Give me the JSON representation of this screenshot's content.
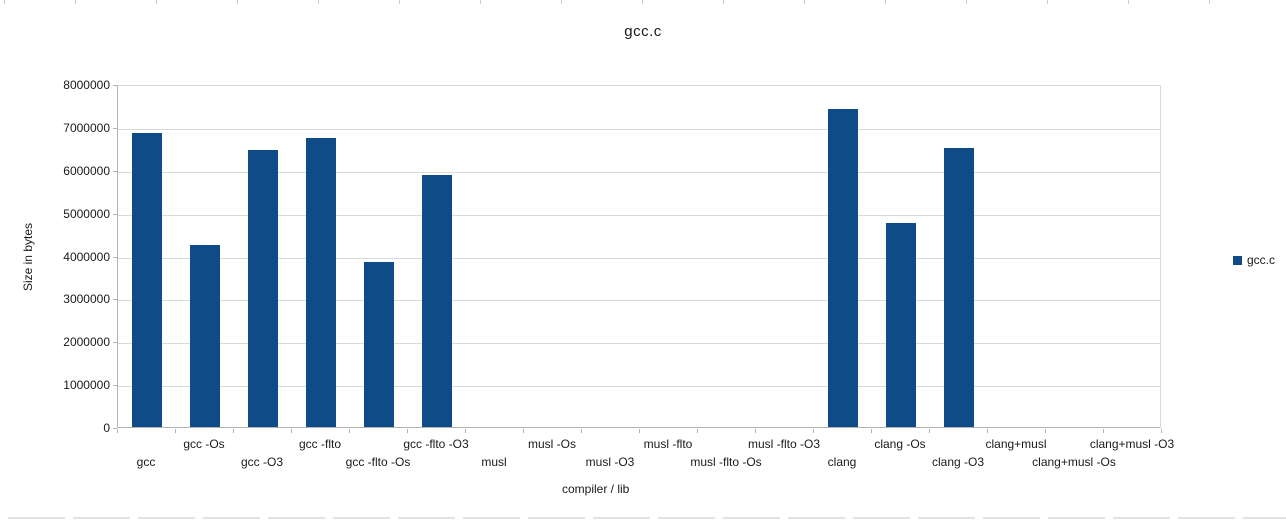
{
  "window": {
    "background": "#ffffff"
  },
  "chart_data": {
    "type": "bar",
    "title": "gcc.c",
    "xlabel": "compiler / lib",
    "ylabel": "Size in bytes",
    "ylim": [
      0,
      8000000
    ],
    "ytick_step": 1000000,
    "yticks": [
      "0",
      "1000000",
      "2000000",
      "3000000",
      "4000000",
      "5000000",
      "6000000",
      "7000000",
      "8000000"
    ],
    "grid": true,
    "legend_position": "right",
    "legend_entries": [
      "gcc.c"
    ],
    "bar_color": "#0e4b87",
    "categories": [
      "gcc",
      "gcc -Os",
      "gcc -O3",
      "gcc -flto",
      "gcc -flto -Os",
      "gcc -flto -O3",
      "musl",
      "musl -Os",
      "musl -O3",
      "musl -flto",
      "musl -flto -Os",
      "musl -flto -O3",
      "clang",
      "clang -Os",
      "clang -O3",
      "clang+musl",
      "clang+musl -Os",
      "clang+musl -O3"
    ],
    "values": [
      6850000,
      4240000,
      6470000,
      6740000,
      3860000,
      5870000,
      0,
      0,
      0,
      0,
      0,
      0,
      7420000,
      4750000,
      6500000,
      0,
      0,
      0
    ]
  },
  "legend": {
    "label": "gcc.c",
    "swatch_color": "#0e4b87"
  },
  "axis_colors": {
    "gridline": "#d9d9d9",
    "axis_line": "#b3b3b3",
    "text": "#1a1a1a"
  }
}
